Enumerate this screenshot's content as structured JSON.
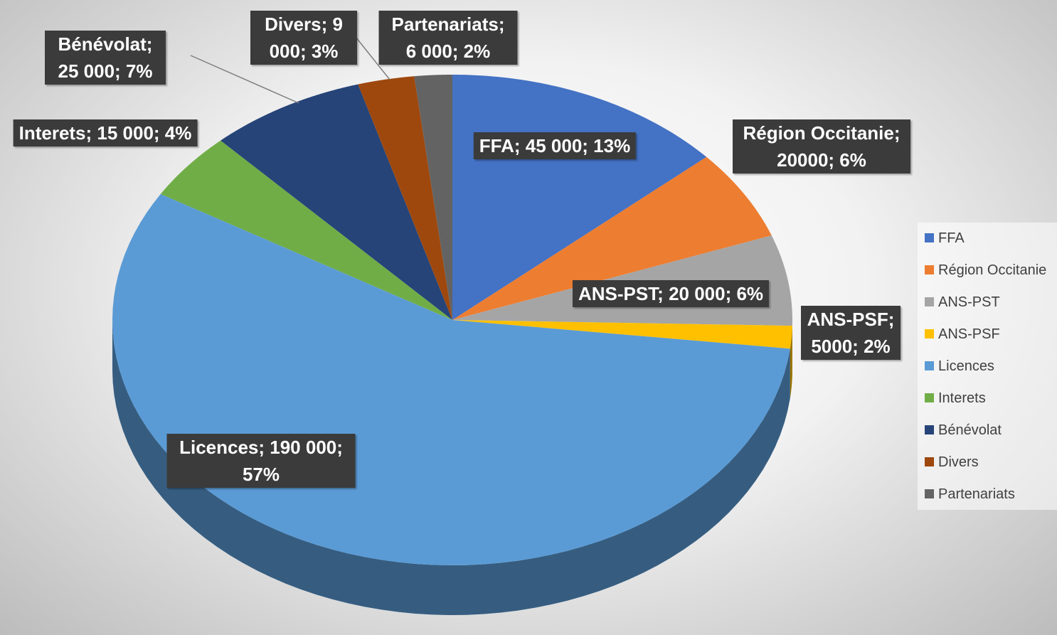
{
  "chart_data": {
    "type": "pie",
    "categories": [
      "FFA",
      "Région Occitanie",
      "ANS-PST",
      "ANS-PSF",
      "Licences",
      "Interets",
      "Bénévolat",
      "Divers",
      "Partenariats"
    ],
    "values": [
      45000,
      20000,
      20000,
      5000,
      190000,
      15000,
      25000,
      9000,
      6000
    ],
    "value_labels": [
      "FFA; 45 000; 13%",
      "Région Occitanie; 20000; 6%",
      "ANS-PST; 20 000; 6%",
      "ANS-PSF; 5000; 2%",
      "Licences; 190 000; 57%",
      "Interets; 15 000; 4%",
      "Bénévolat; 25 000; 7%",
      "Divers; 9 000; 3%",
      "Partenariats; 6 000; 2%"
    ],
    "colors": [
      "#4472c4",
      "#ed7d31",
      "#a5a5a5",
      "#ffc000",
      "#5b9bd5",
      "#70ad47",
      "#264478",
      "#9e480e",
      "#636363"
    ],
    "legend": "right"
  }
}
